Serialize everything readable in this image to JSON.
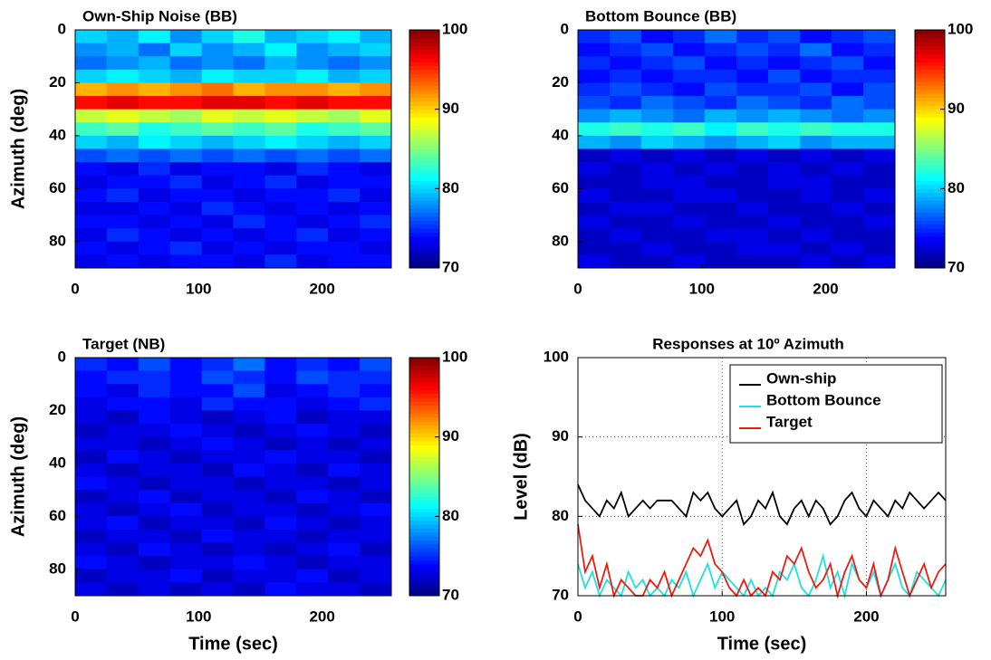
{
  "chart_data": [
    {
      "type": "heatmap",
      "title": "Own-Ship Noise (BB)",
      "ylabel": "Azimuth (deg)",
      "colormap": "jet",
      "xlim": [
        0,
        256
      ],
      "xticks": [
        0,
        100,
        200
      ],
      "ylim": [
        0,
        90
      ],
      "yticks": [
        0,
        20,
        40,
        60,
        80
      ],
      "yreverse": true,
      "clim": [
        70,
        100
      ],
      "cticks": [
        70,
        80,
        90,
        100
      ],
      "z": [
        [
          80,
          79,
          81,
          78,
          80,
          82,
          79,
          80,
          81,
          79
        ],
        [
          78,
          79,
          77,
          80,
          78,
          79,
          81,
          78,
          79,
          80
        ],
        [
          77,
          78,
          79,
          77,
          78,
          77,
          79,
          78,
          77,
          78
        ],
        [
          80,
          81,
          80,
          79,
          81,
          80,
          80,
          81,
          79,
          80
        ],
        [
          91,
          92,
          91,
          92,
          93,
          91,
          92,
          92,
          91,
          92
        ],
        [
          96,
          97,
          96,
          96,
          97,
          97,
          96,
          97,
          96,
          96
        ],
        [
          87,
          88,
          87,
          86,
          88,
          87,
          88,
          87,
          86,
          88
        ],
        [
          83,
          84,
          82,
          83,
          84,
          83,
          84,
          82,
          83,
          84
        ],
        [
          80,
          79,
          81,
          80,
          79,
          80,
          81,
          80,
          79,
          80
        ],
        [
          76,
          77,
          76,
          77,
          76,
          77,
          76,
          77,
          76,
          77
        ],
        [
          74,
          73,
          75,
          73,
          74,
          74,
          73,
          75,
          74,
          73
        ],
        [
          73,
          74,
          74,
          75,
          73,
          74,
          75,
          73,
          74,
          74
        ],
        [
          74,
          75,
          73,
          74,
          74,
          73,
          74,
          74,
          75,
          73
        ],
        [
          73,
          73,
          74,
          73,
          75,
          74,
          73,
          74,
          73,
          74
        ],
        [
          74,
          74,
          73,
          74,
          73,
          75,
          74,
          73,
          74,
          75
        ],
        [
          73,
          75,
          74,
          73,
          74,
          73,
          74,
          75,
          73,
          74
        ],
        [
          74,
          73,
          74,
          75,
          73,
          74,
          73,
          74,
          74,
          73
        ],
        [
          73,
          74,
          73,
          74,
          74,
          73,
          75,
          73,
          74,
          74
        ]
      ]
    },
    {
      "type": "heatmap",
      "title": "Bottom Bounce (BB)",
      "colormap": "jet",
      "xlim": [
        0,
        256
      ],
      "xticks": [
        0,
        100,
        200
      ],
      "ylim": [
        0,
        90
      ],
      "yticks": [
        0,
        20,
        40,
        60,
        80
      ],
      "yreverse": true,
      "clim": [
        70,
        100
      ],
      "cticks": [
        70,
        80,
        90,
        100
      ],
      "z": [
        [
          75,
          76,
          74,
          75,
          77,
          75,
          76,
          74,
          75,
          76
        ],
        [
          74,
          75,
          76,
          74,
          75,
          76,
          75,
          77,
          74,
          75
        ],
        [
          75,
          74,
          75,
          76,
          74,
          75,
          74,
          75,
          76,
          74
        ],
        [
          74,
          75,
          74,
          75,
          75,
          74,
          76,
          74,
          75,
          75
        ],
        [
          75,
          76,
          75,
          74,
          76,
          75,
          75,
          76,
          74,
          76
        ],
        [
          76,
          75,
          77,
          76,
          75,
          77,
          76,
          75,
          77,
          76
        ],
        [
          78,
          79,
          78,
          77,
          79,
          78,
          79,
          78,
          77,
          78
        ],
        [
          82,
          83,
          82,
          83,
          81,
          83,
          82,
          83,
          82,
          82
        ],
        [
          79,
          78,
          80,
          79,
          78,
          79,
          80,
          78,
          79,
          79
        ],
        [
          72,
          73,
          72,
          73,
          72,
          73,
          72,
          73,
          72,
          73
        ],
        [
          73,
          72,
          73,
          72,
          73,
          72,
          73,
          72,
          73,
          72
        ],
        [
          72,
          72,
          73,
          73,
          72,
          72,
          73,
          73,
          72,
          72
        ],
        [
          73,
          72,
          72,
          73,
          73,
          72,
          72,
          73,
          72,
          73
        ],
        [
          72,
          73,
          73,
          72,
          72,
          73,
          72,
          72,
          73,
          72
        ],
        [
          73,
          72,
          72,
          73,
          72,
          72,
          73,
          72,
          72,
          73
        ],
        [
          72,
          73,
          72,
          72,
          73,
          73,
          72,
          73,
          72,
          72
        ],
        [
          72,
          72,
          73,
          72,
          72,
          73,
          73,
          72,
          73,
          72
        ],
        [
          73,
          72,
          72,
          73,
          72,
          72,
          72,
          73,
          72,
          73
        ]
      ]
    },
    {
      "type": "heatmap",
      "title": "Target (NB)",
      "ylabel": "Azimuth (deg)",
      "xlabel": "Time (sec)",
      "colormap": "jet",
      "xlim": [
        0,
        256
      ],
      "xticks": [
        0,
        100,
        200
      ],
      "ylim": [
        0,
        90
      ],
      "yticks": [
        0,
        20,
        40,
        60,
        80
      ],
      "yreverse": true,
      "clim": [
        70,
        100
      ],
      "cticks": [
        70,
        80,
        90,
        100
      ],
      "z": [
        [
          75,
          74,
          76,
          74,
          75,
          77,
          74,
          75,
          74,
          76
        ],
        [
          74,
          75,
          75,
          74,
          76,
          75,
          74,
          76,
          75,
          75
        ],
        [
          74,
          73,
          75,
          74,
          74,
          76,
          73,
          74,
          75,
          74
        ],
        [
          73,
          74,
          74,
          73,
          75,
          74,
          74,
          73,
          74,
          75
        ],
        [
          73,
          72,
          74,
          73,
          72,
          73,
          74,
          72,
          73,
          73
        ],
        [
          72,
          73,
          73,
          74,
          73,
          72,
          73,
          74,
          73,
          72
        ],
        [
          73,
          73,
          72,
          73,
          74,
          73,
          72,
          73,
          72,
          73
        ],
        [
          72,
          74,
          73,
          72,
          73,
          73,
          74,
          73,
          73,
          72
        ],
        [
          73,
          72,
          73,
          73,
          72,
          74,
          73,
          72,
          74,
          73
        ],
        [
          74,
          73,
          72,
          73,
          73,
          72,
          73,
          73,
          72,
          73
        ],
        [
          72,
          73,
          74,
          72,
          73,
          73,
          72,
          74,
          73,
          72
        ],
        [
          73,
          72,
          73,
          74,
          72,
          73,
          73,
          72,
          73,
          74
        ],
        [
          73,
          74,
          72,
          73,
          73,
          72,
          74,
          73,
          72,
          73
        ],
        [
          72,
          73,
          73,
          72,
          74,
          73,
          73,
          72,
          73,
          73
        ],
        [
          73,
          72,
          74,
          73,
          72,
          73,
          72,
          73,
          74,
          72
        ],
        [
          74,
          73,
          72,
          73,
          73,
          74,
          73,
          72,
          73,
          73
        ],
        [
          72,
          73,
          73,
          74,
          72,
          73,
          73,
          74,
          72,
          73
        ],
        [
          73,
          72,
          73,
          72,
          73,
          72,
          74,
          73,
          73,
          72
        ]
      ]
    },
    {
      "type": "line",
      "title": "Responses at 10º Azimuth",
      "ylabel": "Level (dB)",
      "xlabel": "Time (sec)",
      "xlim": [
        0,
        255
      ],
      "xticks": [
        0,
        100,
        200
      ],
      "ylim": [
        70,
        100
      ],
      "yticks": [
        70,
        80,
        90,
        100
      ],
      "grid": true,
      "legend": "upper right",
      "x": [
        0,
        5,
        10,
        15,
        20,
        25,
        30,
        35,
        40,
        45,
        50,
        55,
        60,
        65,
        70,
        75,
        80,
        85,
        90,
        95,
        100,
        105,
        110,
        115,
        120,
        125,
        130,
        135,
        140,
        145,
        150,
        155,
        160,
        165,
        170,
        175,
        180,
        185,
        190,
        195,
        200,
        205,
        210,
        215,
        220,
        225,
        230,
        235,
        240,
        245,
        250,
        255
      ],
      "series": [
        {
          "name": "Own-ship",
          "color": "#000000",
          "text_color": "#000000",
          "values": [
            84,
            82,
            81,
            80,
            82,
            81,
            83,
            80,
            81,
            82,
            81,
            82,
            82,
            82,
            81,
            80,
            83,
            82,
            83,
            81,
            80,
            81,
            82,
            79,
            80,
            82,
            81,
            83,
            80,
            79,
            81,
            82,
            80,
            82,
            81,
            79,
            80,
            82,
            83,
            81,
            80,
            82,
            81,
            80,
            82,
            81,
            83,
            82,
            81,
            82,
            83,
            82
          ]
        },
        {
          "name": "Bottom Bounce",
          "color": "#20e0e0",
          "text_color": "#20b8a8",
          "values": [
            74,
            71,
            73,
            70,
            72,
            71,
            70,
            73,
            71,
            72,
            70,
            71,
            70,
            72,
            71,
            73,
            70,
            72,
            74,
            71,
            73,
            72,
            71,
            70,
            72,
            70,
            71,
            70,
            73,
            72,
            74,
            71,
            70,
            72,
            75,
            71,
            73,
            70,
            74,
            72,
            71,
            73,
            70,
            72,
            74,
            71,
            70,
            73,
            72,
            71,
            70,
            72
          ]
        },
        {
          "name": "Target",
          "color": "#ee1a10",
          "text_color": "#f03010",
          "values": [
            79,
            73,
            75,
            71,
            74,
            70,
            72,
            71,
            70,
            70,
            72,
            71,
            73,
            70,
            72,
            74,
            76,
            75,
            77,
            74,
            73,
            71,
            70,
            72,
            70,
            71,
            70,
            73,
            72,
            75,
            74,
            76,
            73,
            71,
            72,
            74,
            70,
            73,
            75,
            72,
            71,
            74,
            70,
            72,
            76,
            73,
            70,
            72,
            74,
            71,
            73,
            74
          ]
        }
      ]
    }
  ]
}
